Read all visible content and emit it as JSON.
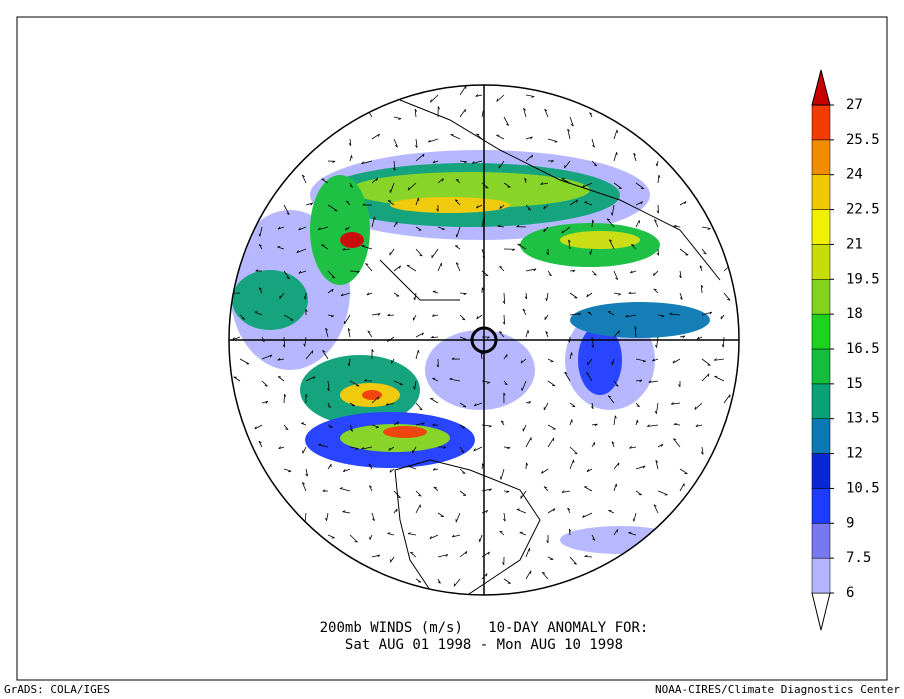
{
  "caption": {
    "line1": "200mb WINDS (m/s)   10-DAY ANOMALY FOR:",
    "line2": "Sat AUG 01 1998 - Mon AUG 10 1998"
  },
  "footer": {
    "left": "GrADS: COLA/IGES",
    "right": "NOAA-CIRES/Climate Diagnostics Center"
  },
  "colorbar": {
    "levels": [
      6,
      7.5,
      9,
      10.5,
      12,
      13.5,
      15,
      16.5,
      18,
      19.5,
      21,
      22.5,
      24,
      25.5,
      27
    ],
    "colors": [
      "#ffffff",
      "#b4b4ff",
      "#7878f0",
      "#1e3cff",
      "#0a28d2",
      "#0a78b4",
      "#0aa078",
      "#14be3c",
      "#1ed21e",
      "#82d21e",
      "#c8dc0a",
      "#f0f000",
      "#f0c800",
      "#f08c00",
      "#f03c00",
      "#c80000"
    ]
  }
}
